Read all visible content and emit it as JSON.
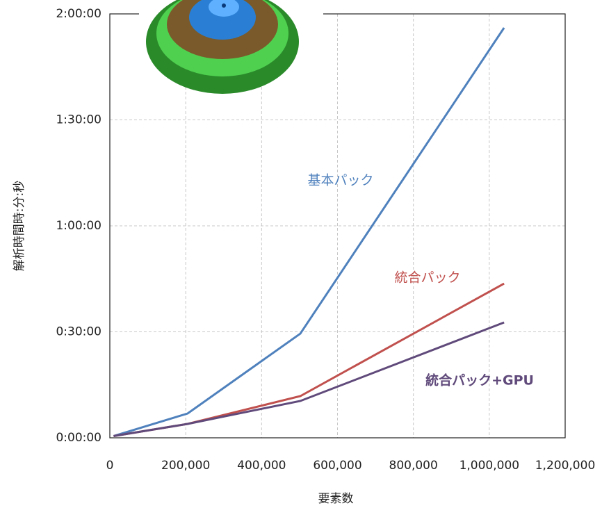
{
  "chart_data": {
    "type": "line",
    "x_label": "要素数",
    "y_label": "解析時間時:分:秒",
    "x": [
      10000,
      205000,
      502000,
      1039000
    ],
    "series": [
      {
        "name": "基本パック",
        "color": "#4f81bd",
        "values": [
          30,
          413,
          1770,
          6964
        ]
      },
      {
        "name": "統合パック",
        "color": "#c0504d",
        "values": [
          30,
          236,
          708,
          2620
        ]
      },
      {
        "name": "統合パック+GPU",
        "color": "#604a7b",
        "values": [
          30,
          236,
          626,
          1959
        ]
      }
    ],
    "xlim": [
      0,
      1200000
    ],
    "xticks": [
      0,
      {
        "value": 200000,
        "label": "200,000"
      },
      {
        "value": 400000,
        "label": "400,000"
      },
      {
        "value": 600000,
        "label": "600,000"
      },
      {
        "value": 800000,
        "label": "800,000"
      },
      {
        "value": 1000000,
        "label": "1,000,000"
      },
      {
        "value": 1200000,
        "label": "1,200,000"
      }
    ],
    "ylim": [
      0,
      7200
    ],
    "yticks": [
      {
        "value": 0,
        "label": "0:00:00"
      },
      {
        "value": 1800,
        "label": "0:30:00"
      },
      {
        "value": 3600,
        "label": "1:00:00"
      },
      {
        "value": 5400,
        "label": "1:30:00"
      },
      {
        "value": 7200,
        "label": "2:00:00"
      }
    ],
    "grid": true
  }
}
